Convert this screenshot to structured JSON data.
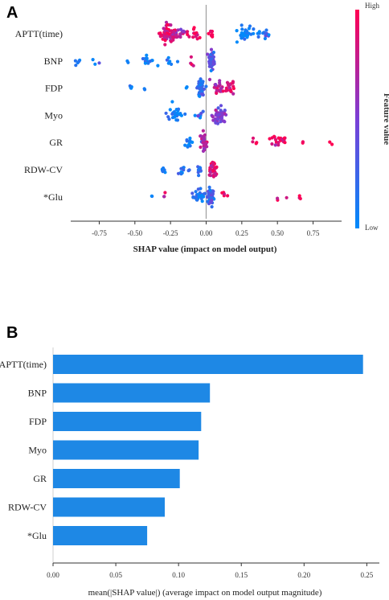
{
  "figure": {
    "panel_a_letter": "A",
    "panel_b_letter": "B"
  },
  "colors": {
    "low": "#1e88e5",
    "high": "#ff0d57",
    "bar": "#1e88e5"
  },
  "chart_data": [
    {
      "type": "scatter",
      "subtype": "shap-beeswarm",
      "features": [
        "APTT(time)",
        "BNP",
        "FDP",
        "Myo",
        "GR",
        "RDW-CV",
        "*Glu"
      ],
      "xlabel": "SHAP value (impact on model output)",
      "xticks": [
        -0.75,
        -0.5,
        -0.25,
        0.0,
        0.25,
        0.5,
        0.75
      ],
      "xtick_labels": [
        "-0.75",
        "-0.50",
        "-0.25",
        "0.00",
        "0.25",
        "0.50",
        "0.75"
      ],
      "xlim": [
        -0.95,
        0.95
      ],
      "colorbar": {
        "title": "Feature value",
        "high_label": "High",
        "low_label": "Low"
      },
      "clusters": [
        {
          "feature": "APTT(time)",
          "groups": [
            {
              "center": -0.27,
              "spread": 0.05,
              "n": 55,
              "color": 0.85
            },
            {
              "center": -0.19,
              "spread": 0.04,
              "n": 20,
              "color": 0.7
            },
            {
              "center": -0.09,
              "spread": 0.05,
              "n": 14,
              "color": 0.95
            },
            {
              "center": 0.03,
              "spread": 0.02,
              "n": 8,
              "color": 1.0
            },
            {
              "center": 0.28,
              "spread": 0.05,
              "n": 30,
              "color": 0.05
            },
            {
              "center": 0.41,
              "spread": 0.04,
              "n": 14,
              "color": 0.1
            }
          ]
        },
        {
          "feature": "BNP",
          "groups": [
            {
              "center": -0.9,
              "spread": 0.03,
              "n": 5,
              "color": 0.05
            },
            {
              "center": -0.77,
              "spread": 0.02,
              "n": 3,
              "color": 0.05
            },
            {
              "center": -0.55,
              "spread": 0.02,
              "n": 2,
              "color": 0.05
            },
            {
              "center": -0.4,
              "spread": 0.05,
              "n": 14,
              "color": 0.08
            },
            {
              "center": -0.24,
              "spread": 0.04,
              "n": 6,
              "color": 0.05
            },
            {
              "center": -0.1,
              "spread": 0.02,
              "n": 4,
              "color": 0.9
            },
            {
              "center": 0.04,
              "spread": 0.015,
              "n": 55,
              "color": 0.35
            }
          ]
        },
        {
          "feature": "FDP",
          "groups": [
            {
              "center": -0.53,
              "spread": 0.015,
              "n": 4,
              "color": 0.05
            },
            {
              "center": -0.43,
              "spread": 0.01,
              "n": 2,
              "color": 0.05
            },
            {
              "center": -0.14,
              "spread": 0.01,
              "n": 2,
              "color": 0.05
            },
            {
              "center": -0.04,
              "spread": 0.02,
              "n": 45,
              "color": 0.2
            },
            {
              "center": 0.08,
              "spread": 0.04,
              "n": 25,
              "color": 0.75
            },
            {
              "center": 0.17,
              "spread": 0.03,
              "n": 18,
              "color": 0.9
            }
          ]
        },
        {
          "feature": "Myo",
          "groups": [
            {
              "center": -0.22,
              "spread": 0.05,
              "n": 25,
              "color": 0.05
            },
            {
              "center": -0.05,
              "spread": 0.02,
              "n": 8,
              "color": 0.1
            },
            {
              "center": 0.09,
              "spread": 0.04,
              "n": 55,
              "color": 0.5
            }
          ]
        },
        {
          "feature": "GR",
          "groups": [
            {
              "center": -0.12,
              "spread": 0.03,
              "n": 12,
              "color": 0.1
            },
            {
              "center": -0.02,
              "spread": 0.025,
              "n": 35,
              "color": 0.7
            },
            {
              "center": 0.34,
              "spread": 0.02,
              "n": 4,
              "color": 0.95
            },
            {
              "center": 0.52,
              "spread": 0.05,
              "n": 22,
              "color": 0.95
            },
            {
              "center": 0.67,
              "spread": 0.01,
              "n": 2,
              "color": 0.95
            },
            {
              "center": 0.87,
              "spread": 0.02,
              "n": 2,
              "color": 0.95
            }
          ]
        },
        {
          "feature": "RDW-CV",
          "groups": [
            {
              "center": -0.3,
              "spread": 0.02,
              "n": 10,
              "color": 0.05
            },
            {
              "center": -0.16,
              "spread": 0.03,
              "n": 10,
              "color": 0.08
            },
            {
              "center": -0.05,
              "spread": 0.02,
              "n": 10,
              "color": 0.1
            },
            {
              "center": 0.05,
              "spread": 0.02,
              "n": 35,
              "color": 0.85
            }
          ]
        },
        {
          "feature": "*Glu",
          "groups": [
            {
              "center": -0.38,
              "spread": 0.01,
              "n": 2,
              "color": 0.05
            },
            {
              "center": -0.3,
              "spread": 0.01,
              "n": 3,
              "color": 0.9
            },
            {
              "center": -0.06,
              "spread": 0.04,
              "n": 30,
              "color": 0.1
            },
            {
              "center": 0.03,
              "spread": 0.02,
              "n": 40,
              "color": 0.3
            },
            {
              "center": 0.13,
              "spread": 0.02,
              "n": 5,
              "color": 0.95
            },
            {
              "center": 0.5,
              "spread": 0.01,
              "n": 2,
              "color": 0.95
            },
            {
              "center": 0.57,
              "spread": 0.005,
              "n": 1,
              "color": 0.95
            },
            {
              "center": 0.65,
              "spread": 0.02,
              "n": 3,
              "color": 0.95
            }
          ]
        }
      ]
    },
    {
      "type": "bar",
      "orientation": "horizontal",
      "categories": [
        "APTT(time)",
        "BNP",
        "FDP",
        "Myo",
        "GR",
        "RDW-CV",
        "*Glu"
      ],
      "values": [
        0.247,
        0.125,
        0.118,
        0.116,
        0.101,
        0.089,
        0.075
      ],
      "xlabel": "mean(|SHAP value|) (average impact on model output magnitude)",
      "xticks": [
        0.0,
        0.05,
        0.1,
        0.15,
        0.2,
        0.25
      ],
      "xtick_labels": [
        "0.00",
        "0.05",
        "0.10",
        "0.15",
        "0.20",
        "0.25"
      ],
      "xlim": [
        0.0,
        0.26
      ]
    }
  ]
}
